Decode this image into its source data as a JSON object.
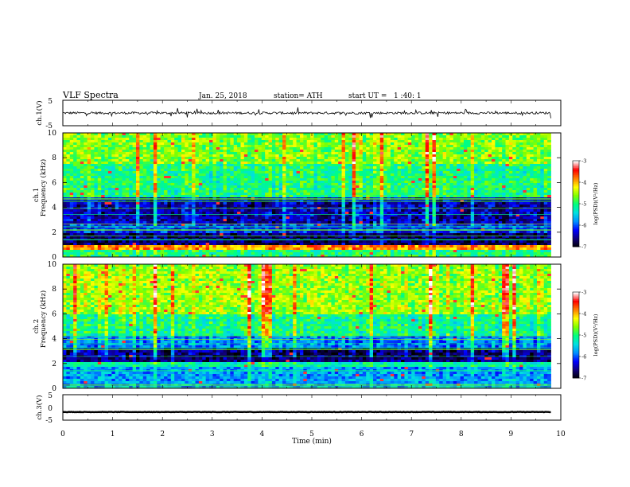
{
  "header": {
    "title": "VLF Spectra",
    "date": "Jan. 25, 2018",
    "station": "station= ATH",
    "start": "start UT =   1 :40: 1"
  },
  "chart_data": [
    {
      "type": "line",
      "name": "ch1-waveform",
      "ylabel": "ch.1(V)",
      "ylim": [
        -5,
        5
      ],
      "yticks": [
        "5",
        "-5"
      ],
      "xlim": [
        0,
        10
      ],
      "xmax_data": 9.8,
      "baseline_v": 0.0,
      "noise_amplitude_v": 0.9,
      "color": "#000000"
    },
    {
      "type": "heatmap",
      "name": "ch1-spectrogram",
      "ylabel": "Frequency (kHz)",
      "channel_label": "ch.1",
      "xlim": [
        0,
        10
      ],
      "xmax_data": 9.8,
      "ylim": [
        0,
        10
      ],
      "yticks": [
        "0",
        "2",
        "4",
        "6",
        "8",
        "10"
      ],
      "bands_khz": [
        {
          "from": 0.0,
          "to": 0.5,
          "level": 0.5
        },
        {
          "from": 0.5,
          "to": 0.9,
          "level": 0.78
        },
        {
          "from": 0.9,
          "to": 2.0,
          "level": 0.08
        },
        {
          "from": 2.0,
          "to": 2.6,
          "level": 0.22
        },
        {
          "from": 2.6,
          "to": 4.8,
          "level": 0.14
        },
        {
          "from": 4.8,
          "to": 7.5,
          "level": 0.5
        },
        {
          "from": 7.5,
          "to": 10.0,
          "level": 0.6
        }
      ],
      "colorbar": {
        "label": "log(PSD)(V²/Hz)",
        "range": [
          -7,
          -3
        ],
        "ticks": [
          "-3",
          "-4",
          "-5",
          "-6",
          "-7"
        ]
      }
    },
    {
      "type": "heatmap",
      "name": "ch2-spectrogram",
      "ylabel": "Frequency (kHz)",
      "channel_label": "ch.2",
      "xlim": [
        0,
        10
      ],
      "xmax_data": 9.8,
      "ylim": [
        0,
        10
      ],
      "yticks": [
        "0",
        "2",
        "4",
        "6",
        "8",
        "10"
      ],
      "bands_khz": [
        {
          "from": 0.0,
          "to": 1.8,
          "level": 0.32
        },
        {
          "from": 1.8,
          "to": 2.2,
          "level": 0.45
        },
        {
          "from": 2.2,
          "to": 3.2,
          "level": 0.1
        },
        {
          "from": 3.2,
          "to": 4.2,
          "level": 0.3
        },
        {
          "from": 4.2,
          "to": 6.0,
          "level": 0.48
        },
        {
          "from": 6.0,
          "to": 10.0,
          "level": 0.62
        }
      ],
      "colorbar": {
        "label": "log(PSD)(V²/Hz)",
        "range": [
          -7,
          -3
        ],
        "ticks": [
          "-3",
          "-4",
          "-5",
          "-6",
          "-7"
        ]
      }
    },
    {
      "type": "line",
      "name": "ch3-waveform",
      "ylabel": "ch.3(V)",
      "ylim": [
        -5,
        5
      ],
      "yticks": [
        "5",
        "0",
        "-5"
      ],
      "xlim": [
        0,
        10
      ],
      "xmax_data": 9.8,
      "baseline_v": -1.8,
      "noise_amplitude_v": 0.15,
      "color": "#000000"
    }
  ],
  "x_axis": {
    "label": "Time (min)",
    "ticks": [
      "0",
      "1",
      "2",
      "3",
      "4",
      "5",
      "6",
      "7",
      "8",
      "9",
      "10"
    ]
  },
  "colors": {
    "colormap": [
      "#000000",
      "#10007a",
      "#0000ff",
      "#0090ff",
      "#00e0e0",
      "#00ff80",
      "#7fff00",
      "#ffff00",
      "#ff8000",
      "#ff0000",
      "#ffffff"
    ]
  }
}
